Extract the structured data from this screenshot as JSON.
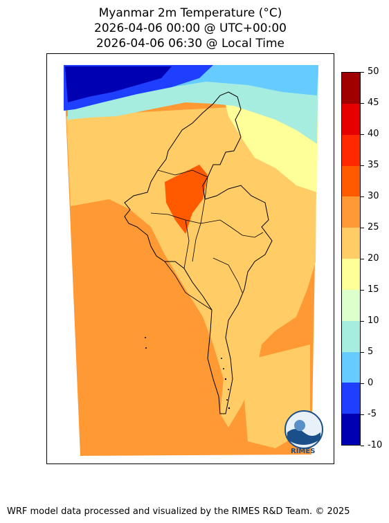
{
  "title": {
    "line1": "Myanmar 2m Temperature (°C)",
    "line2": "2026-04-06 00:00 @ UTC+00:00",
    "line3": "2026-04-06 06:30 @ Local Time"
  },
  "colorbar": {
    "levels": [
      50,
      45,
      40,
      35,
      30,
      25,
      20,
      15,
      10,
      5,
      0,
      -5,
      -10
    ],
    "labels": [
      "50",
      "45",
      "40",
      "35",
      "30",
      "25",
      "20",
      "15",
      "10",
      "5",
      "0",
      "-5",
      "-10"
    ],
    "colors": [
      "#a00000",
      "#e60000",
      "#ff2800",
      "#ff5a00",
      "#ff9933",
      "#ffcc66",
      "#ffff99",
      "#ddffcc",
      "#a6eddf",
      "#66ccff",
      "#1f3fff",
      "#0000b3"
    ]
  },
  "map": {
    "palette": {
      "warm_fill": "#ff9933",
      "mild_fill": "#ffcc66",
      "cool_fill": "#ffff99",
      "cold_fill": "#a6eddf",
      "sky_fill": "#66ccff",
      "blue_fill": "#1f3fff",
      "deep_fill": "#0000b3",
      "hot_fill": "#ff5a00"
    }
  },
  "logo": {
    "text": "RIMES",
    "icon": "rimes-globe-icon"
  },
  "footer": {
    "text": "WRF model data processed and visualized by the RIMES R&D Team. © 2025"
  }
}
